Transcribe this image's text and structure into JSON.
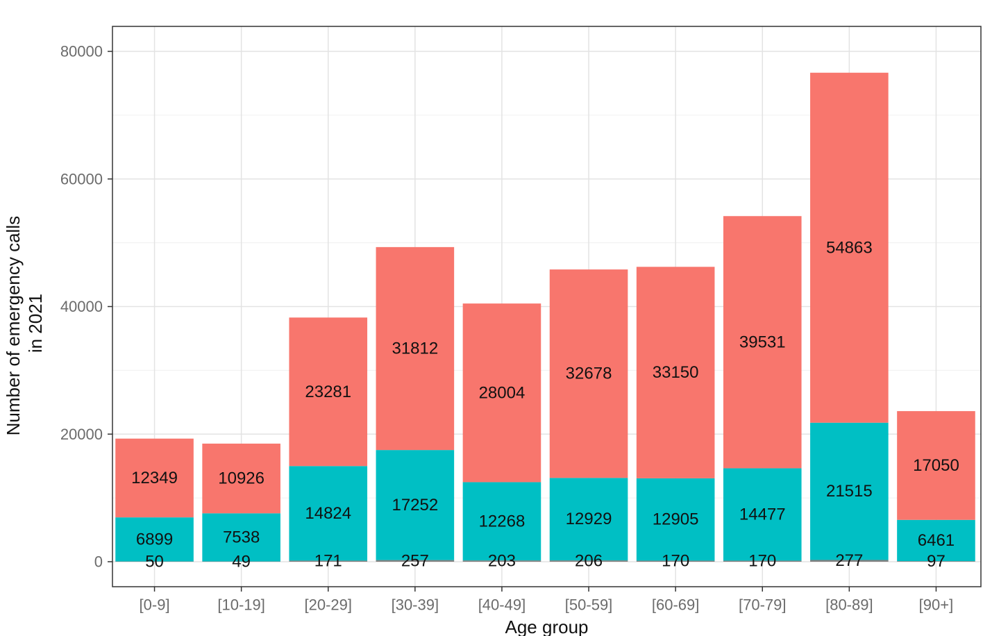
{
  "chart_data": {
    "type": "bar",
    "stacked": true,
    "xlabel": "Age group",
    "ylabel_lines": [
      "Number of emergency calls",
      "in 2021"
    ],
    "categories": [
      "[0-9]",
      "[10-19]",
      "[20-29]",
      "[30-39]",
      "[40-49]",
      "[50-59]",
      "[60-69]",
      "[70-79]",
      "[80-89]",
      "[90+]"
    ],
    "series": [
      {
        "color": "#7f7f7f",
        "values": [
          50,
          49,
          171,
          257,
          203,
          206,
          170,
          170,
          277,
          97
        ]
      },
      {
        "color": "#00bfc4",
        "values": [
          6899,
          7538,
          14824,
          17252,
          12268,
          12929,
          12905,
          14477,
          21515,
          6461
        ]
      },
      {
        "color": "#f8766d",
        "values": [
          12349,
          10926,
          23281,
          31812,
          28004,
          32678,
          33150,
          39531,
          54863,
          17050
        ]
      }
    ],
    "ylim": [
      0,
      84000
    ],
    "yticks": [
      0,
      20000,
      40000,
      60000,
      80000
    ],
    "grid": true,
    "legend": "none"
  }
}
